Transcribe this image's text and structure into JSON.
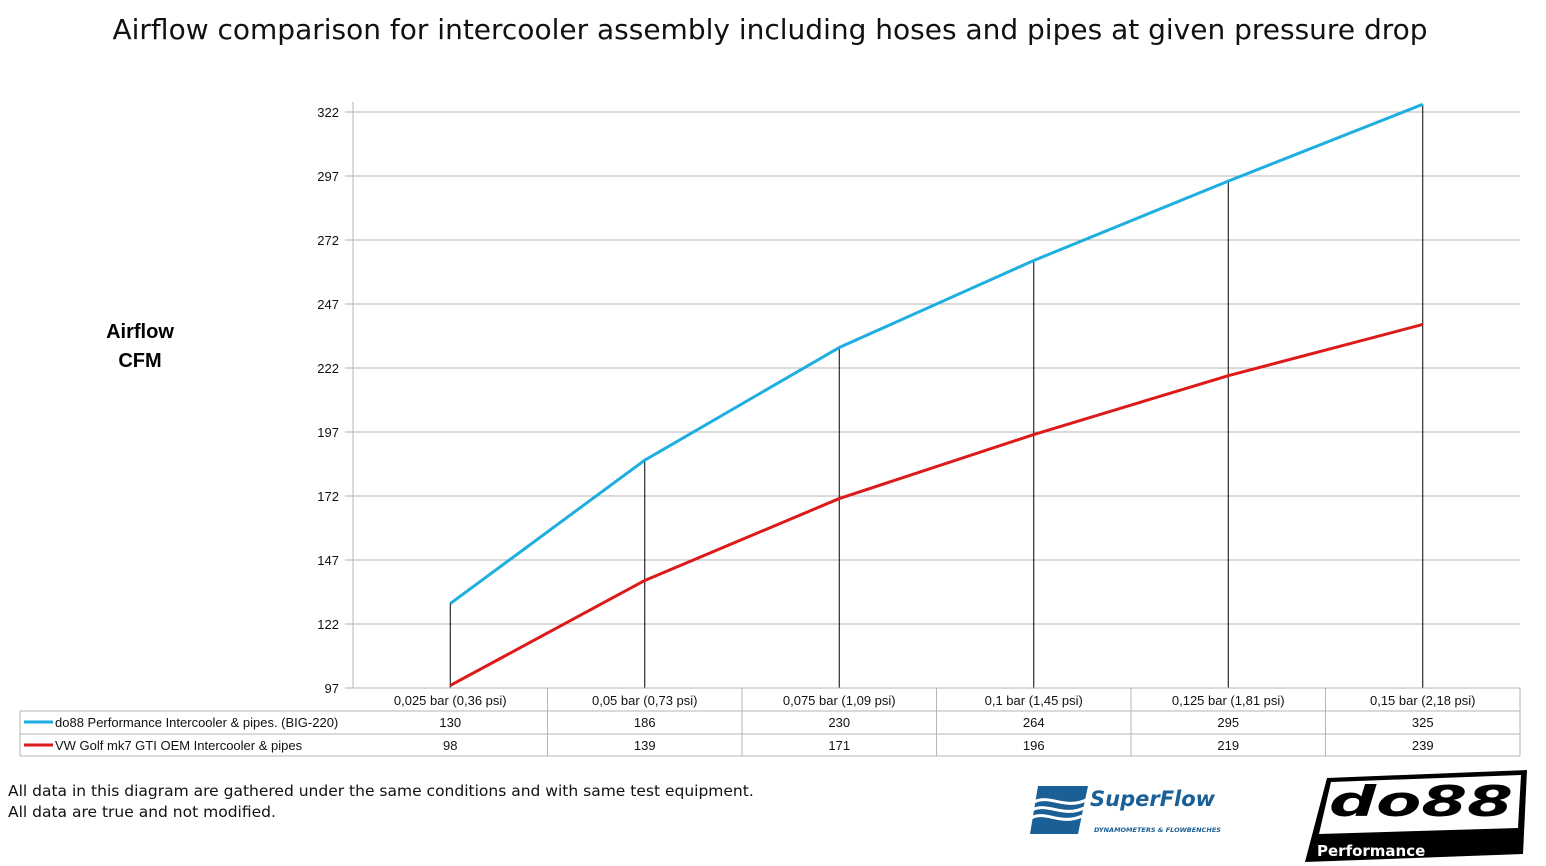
{
  "chart_data": {
    "type": "line",
    "title": "Airflow comparison for intercooler assembly including hoses and pipes at given pressure drop",
    "ylabel": [
      "Airflow",
      "CFM"
    ],
    "xlabel": "",
    "categories": [
      "0,025 bar (0,36 psi)",
      "0,05 bar (0,73 psi)",
      "0,075 bar (1,09 psi)",
      "0,1 bar (1,45 psi)",
      "0,125 bar (1,81 psi)",
      "0,15 bar (2,18 psi)"
    ],
    "yticks": [
      97,
      122,
      147,
      172,
      197,
      222,
      247,
      272,
      297,
      322
    ],
    "ylim": [
      97,
      322
    ],
    "grid": true,
    "legend": "data-table-below",
    "series": [
      {
        "name": "do88 Performance Intercooler & pipes. (BIG-220)",
        "values": [
          130,
          186,
          230,
          264,
          295,
          325
        ],
        "color": "#1eaee0"
      },
      {
        "name": "VW Golf mk7 GTI OEM Intercooler & pipes",
        "values": [
          98,
          139,
          171,
          196,
          219,
          239
        ],
        "color": "#dd1a1a"
      }
    ]
  },
  "footer": {
    "note_lines": [
      "All data in this diagram are gathered under the same conditions and with same test equipment.",
      "All data are true and not modified."
    ]
  },
  "logos": {
    "superflow": {
      "name": "SuperFlow",
      "tagline": "DYNAMOMETERS & FLOWBENCHES",
      "color": "#1a5f95"
    },
    "do88": {
      "name": "do88",
      "tagline": "Performance"
    }
  }
}
